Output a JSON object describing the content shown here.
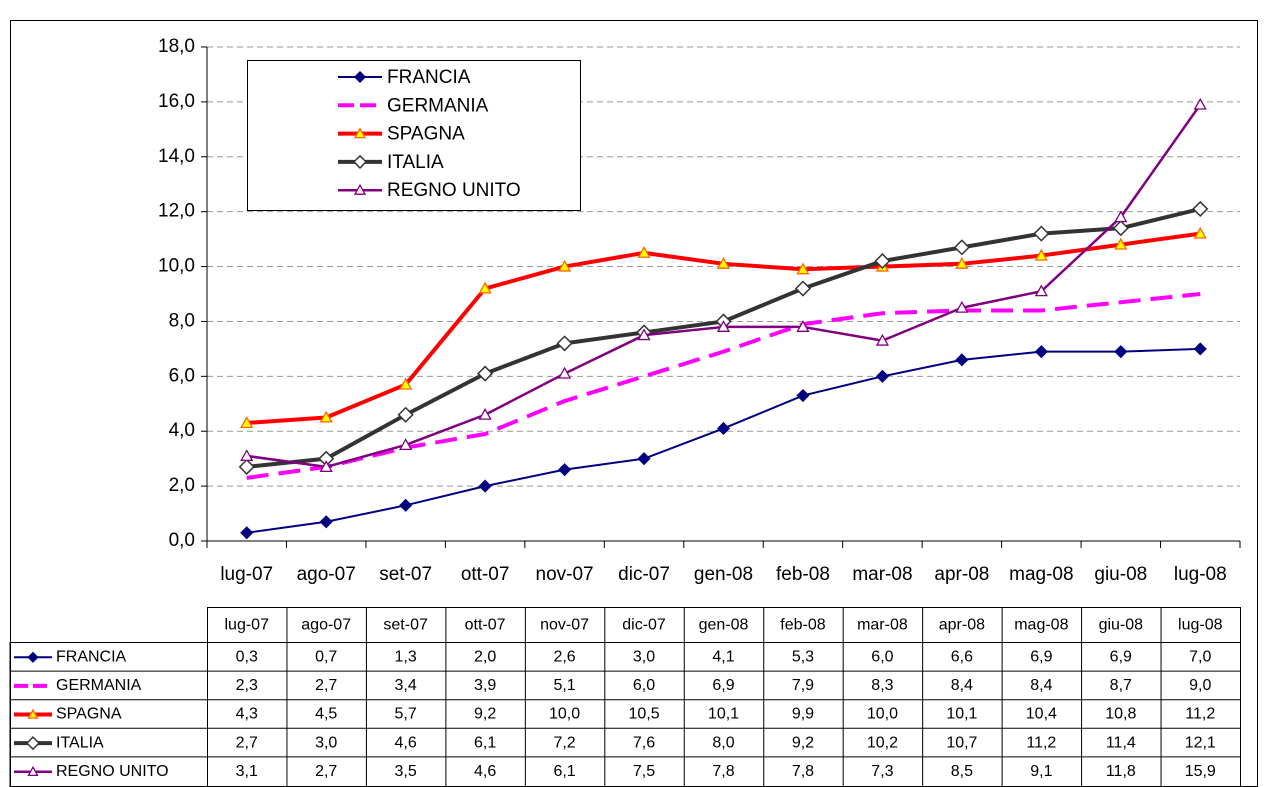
{
  "chart_data": {
    "type": "line",
    "categories": [
      "lug-07",
      "ago-07",
      "set-07",
      "ott-07",
      "nov-07",
      "dic-07",
      "gen-08",
      "feb-08",
      "mar-08",
      "apr-08",
      "mag-08",
      "giu-08",
      "lug-08"
    ],
    "ylim": [
      0,
      18
    ],
    "yticks": [
      {
        "value": 0,
        "label": "0,0"
      },
      {
        "value": 2,
        "label": "2,0"
      },
      {
        "value": 4,
        "label": "4,0"
      },
      {
        "value": 6,
        "label": "6,0"
      },
      {
        "value": 8,
        "label": "8,0"
      },
      {
        "value": 10,
        "label": "10,0"
      },
      {
        "value": 12,
        "label": "12,0"
      },
      {
        "value": 14,
        "label": "14,0"
      },
      {
        "value": 16,
        "label": "16,0"
      },
      {
        "value": 18,
        "label": "18,0"
      }
    ],
    "grid": true,
    "legend": "top-left",
    "series": [
      {
        "name": "FRANCIA",
        "color": "#000080",
        "marker": "diamond",
        "values": [
          0.3,
          0.7,
          1.3,
          2.0,
          2.6,
          3.0,
          4.1,
          5.3,
          6.0,
          6.6,
          6.9,
          6.9,
          7.0
        ],
        "value_labels": [
          "0,3",
          "0,7",
          "1,3",
          "2,0",
          "2,6",
          "3,0",
          "4,1",
          "5,3",
          "6,0",
          "6,6",
          "6,9",
          "6,9",
          "7,0"
        ]
      },
      {
        "name": "GERMANIA",
        "color": "#ff00ff",
        "marker": "none",
        "dashed": true,
        "values": [
          2.3,
          2.7,
          3.4,
          3.9,
          5.1,
          6.0,
          6.9,
          7.9,
          8.3,
          8.4,
          8.4,
          8.7,
          9.0
        ],
        "value_labels": [
          "2,3",
          "2,7",
          "3,4",
          "3,9",
          "5,1",
          "6,0",
          "6,9",
          "7,9",
          "8,3",
          "8,4",
          "8,4",
          "8,7",
          "9,0"
        ]
      },
      {
        "name": "SPAGNA",
        "color": "#ff0000",
        "marker": "triangle",
        "marker_fill": "#ffff00",
        "values": [
          4.3,
          4.5,
          5.7,
          9.2,
          10.0,
          10.5,
          10.1,
          9.9,
          10.0,
          10.1,
          10.4,
          10.8,
          11.2
        ],
        "value_labels": [
          "4,3",
          "4,5",
          "5,7",
          "9,2",
          "10,0",
          "10,5",
          "10,1",
          "9,9",
          "10,0",
          "10,1",
          "10,4",
          "10,8",
          "11,2"
        ]
      },
      {
        "name": "ITALIA",
        "color": "#333333",
        "marker": "diamond",
        "marker_fill": "#ffffff",
        "values": [
          2.7,
          3.0,
          4.6,
          6.1,
          7.2,
          7.6,
          8.0,
          9.2,
          10.2,
          10.7,
          11.2,
          11.4,
          12.1
        ],
        "value_labels": [
          "2,7",
          "3,0",
          "4,6",
          "6,1",
          "7,2",
          "7,6",
          "8,0",
          "9,2",
          "10,2",
          "10,7",
          "11,2",
          "11,4",
          "12,1"
        ]
      },
      {
        "name": "REGNO UNITO",
        "color": "#800080",
        "marker": "triangle",
        "marker_fill": "#ffffff",
        "values": [
          3.1,
          2.7,
          3.5,
          4.6,
          6.1,
          7.5,
          7.8,
          7.8,
          7.3,
          8.5,
          9.1,
          11.8,
          15.9
        ],
        "value_labels": [
          "3,1",
          "2,7",
          "3,5",
          "4,6",
          "6,1",
          "7,5",
          "7,8",
          "7,8",
          "7,3",
          "8,5",
          "9,1",
          "11,8",
          "15,9"
        ]
      }
    ]
  }
}
